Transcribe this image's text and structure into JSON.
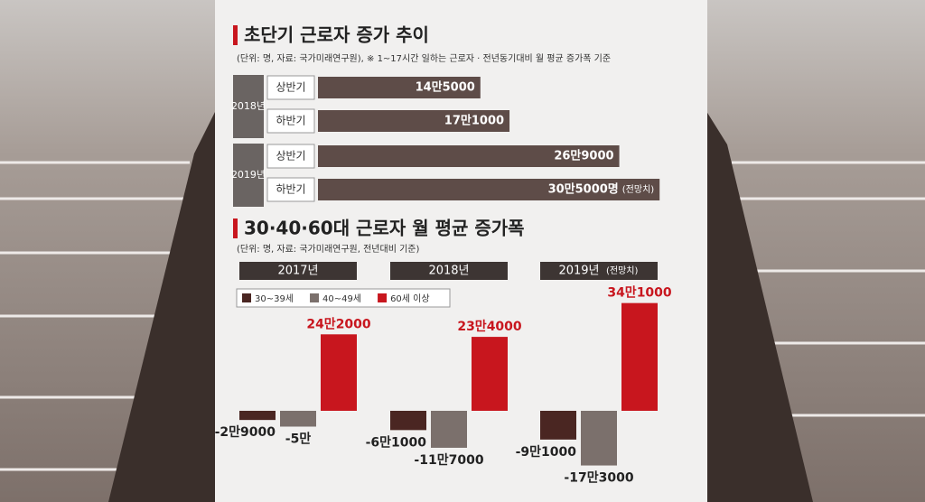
{
  "chart_data": [
    {
      "type": "hbar",
      "title": "초단기 근로자 증가 추이",
      "subtitle": "(단위: 명, 자료: 국가미래연구원), ※ 1~17시간 일하는 근로자 · 전년동기대비 월 평균 증가폭 기준",
      "color": "#5e4c48",
      "groups": [
        {
          "name": "2018년",
          "categories": [
            "상반기",
            "하반기"
          ],
          "values": [
            145000,
            171000
          ],
          "value_labels": [
            "14만5000",
            "17만1000"
          ]
        },
        {
          "name": "2019년",
          "categories": [
            "상반기",
            "하반기"
          ],
          "values": [
            269000,
            305000
          ],
          "value_labels": [
            "26만9000",
            "30만5000명"
          ],
          "annotations": [
            null,
            "(전망치)"
          ]
        }
      ]
    },
    {
      "type": "grouped_bar",
      "title": "30·40·60대 근로자 월 평균 증가폭",
      "subtitle": "(단위: 명, 자료: 국가미래연구원, 전년대비 기준)",
      "categories": [
        "2017년",
        "2018년",
        "2019년"
      ],
      "category_notes": [
        null,
        null,
        "(전망치)"
      ],
      "series": [
        {
          "name": "30~39세",
          "color": "#4a2622",
          "values": [
            -29000,
            -61000,
            -91000
          ],
          "value_labels": [
            "-2만9000",
            "-6만1000",
            "-9만1000"
          ]
        },
        {
          "name": "40~49세",
          "color": "#7b706c",
          "values": [
            -50000,
            -117000,
            -173000
          ],
          "value_labels": [
            "-5만",
            "-11만7000",
            "-17만3000"
          ]
        },
        {
          "name": "60세 이상",
          "color": "#c8161e",
          "values": [
            242000,
            234000,
            341000
          ],
          "value_labels": [
            "24만2000",
            "23만4000",
            "34만1000"
          ]
        }
      ]
    }
  ]
}
